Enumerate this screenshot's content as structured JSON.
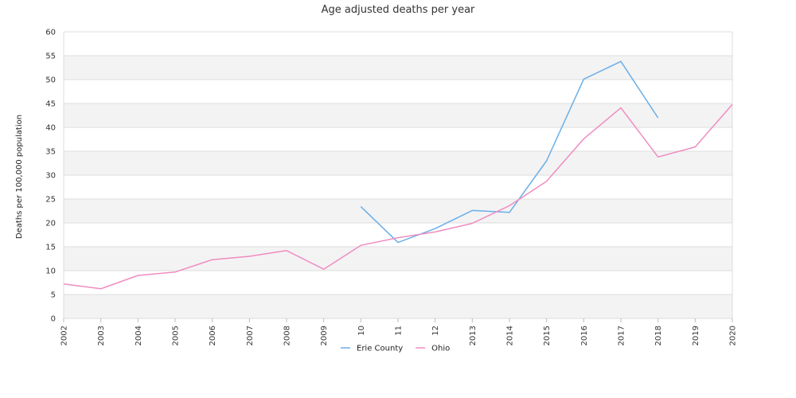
{
  "chart_data": {
    "type": "line",
    "title": "Age adjusted deaths per year",
    "xlabel": "",
    "ylabel": "Deaths per 100,000 population",
    "categories": [
      "2002",
      "2003",
      "2004",
      "2005",
      "2006",
      "2007",
      "2008",
      "2009",
      "10",
      "11",
      "12",
      "2013",
      "2014",
      "2015",
      "2016",
      "2017",
      "2018",
      "2019",
      "2020"
    ],
    "yticks": [
      "0",
      "5",
      "10",
      "15",
      "20",
      "25",
      "30",
      "35",
      "40",
      "45",
      "50",
      "55",
      "60"
    ],
    "ylim": [
      0,
      60
    ],
    "grid": true,
    "legend_position": "bottom-center",
    "series": [
      {
        "name": "Erie County",
        "color": "#6aaee8",
        "values": [
          null,
          null,
          null,
          null,
          null,
          null,
          null,
          null,
          23.4,
          15.9,
          18.8,
          22.6,
          22.2,
          33.0,
          50.1,
          53.8,
          42.0,
          null,
          null
        ]
      },
      {
        "name": "Ohio",
        "color": "#f08cc0",
        "values": [
          7.2,
          6.2,
          9.0,
          9.7,
          12.3,
          13.0,
          14.2,
          10.3,
          15.3,
          16.9,
          18.1,
          19.9,
          23.6,
          28.7,
          37.6,
          44.1,
          33.8,
          35.9,
          44.8
        ]
      }
    ]
  }
}
